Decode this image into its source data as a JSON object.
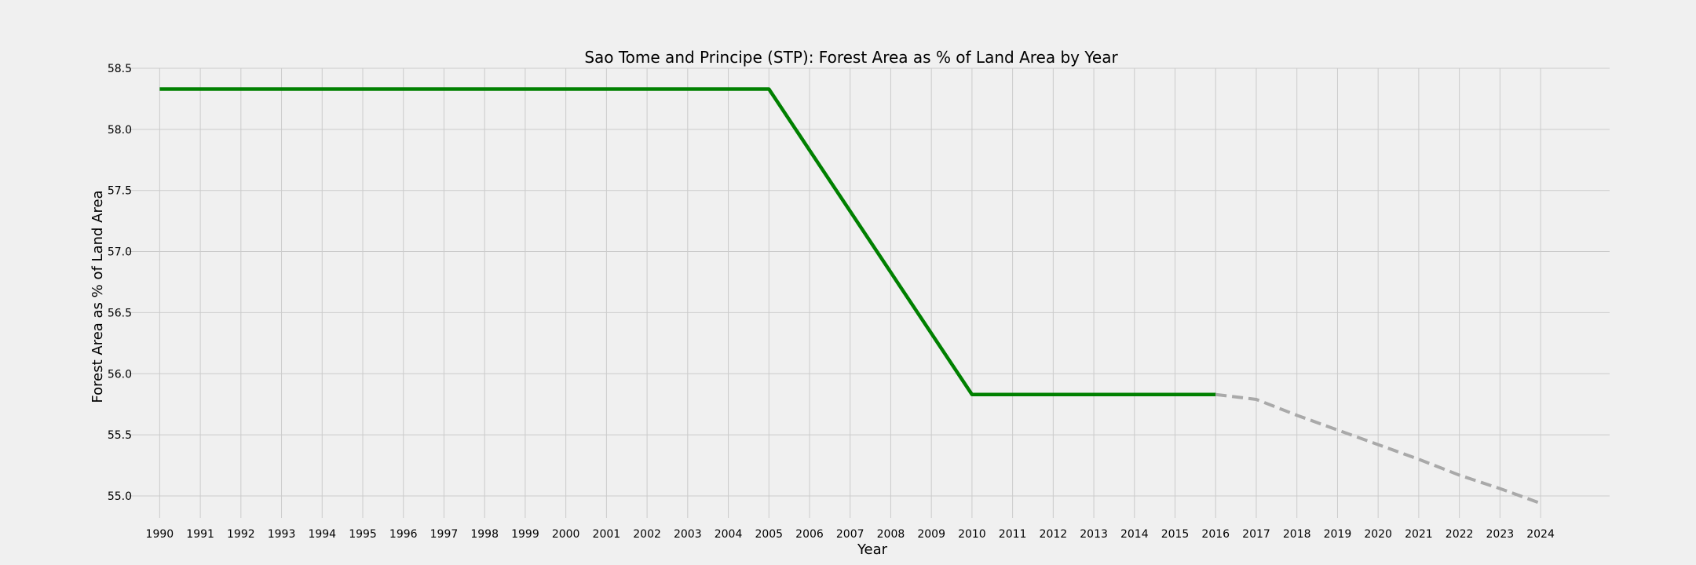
{
  "chart_data": {
    "type": "line",
    "title": "Sao Tome and Principe (STP): Forest Area as % of Land Area by Year",
    "xlabel": "Year",
    "ylabel": "Forest Area as % of Land Area",
    "x_ticks": [
      "1990",
      "1991",
      "1992",
      "1993",
      "1994",
      "1995",
      "1996",
      "1997",
      "1998",
      "1999",
      "2000",
      "2001",
      "2002",
      "2003",
      "2004",
      "2005",
      "2006",
      "2007",
      "2008",
      "2009",
      "2010",
      "2011",
      "2012",
      "2013",
      "2014",
      "2015",
      "2016",
      "2017",
      "2018",
      "2019",
      "2020",
      "2021",
      "2022",
      "2023",
      "2024"
    ],
    "y_ticks": [
      "55.0",
      "55.5",
      "56.0",
      "56.5",
      "57.0",
      "57.5",
      "58.0",
      "58.5"
    ],
    "xlim": [
      1989.2,
      2025.7
    ],
    "ylim": [
      54.82,
      58.5
    ],
    "grid": true,
    "series": [
      {
        "style": "solid",
        "color": "#008000",
        "x": [
          1990,
          1991,
          1992,
          1993,
          1994,
          1995,
          1996,
          1997,
          1998,
          1999,
          2000,
          2001,
          2002,
          2003,
          2004,
          2005,
          2006,
          2007,
          2008,
          2009,
          2010,
          2011,
          2012,
          2013,
          2014,
          2015,
          2016
        ],
        "y": [
          58.33,
          58.33,
          58.33,
          58.33,
          58.33,
          58.33,
          58.33,
          58.33,
          58.33,
          58.33,
          58.33,
          58.33,
          58.33,
          58.33,
          58.33,
          58.33,
          57.83,
          57.33,
          56.83,
          56.33,
          55.83,
          55.83,
          55.83,
          55.83,
          55.83,
          55.83,
          55.83
        ]
      },
      {
        "style": "dashed",
        "color": "#a9a9a9",
        "x": [
          2016,
          2017,
          2018,
          2019,
          2020,
          2021,
          2022,
          2023,
          2024
        ],
        "y": [
          55.83,
          55.79,
          55.66,
          55.54,
          55.42,
          55.3,
          55.17,
          55.06,
          54.94
        ]
      }
    ]
  }
}
